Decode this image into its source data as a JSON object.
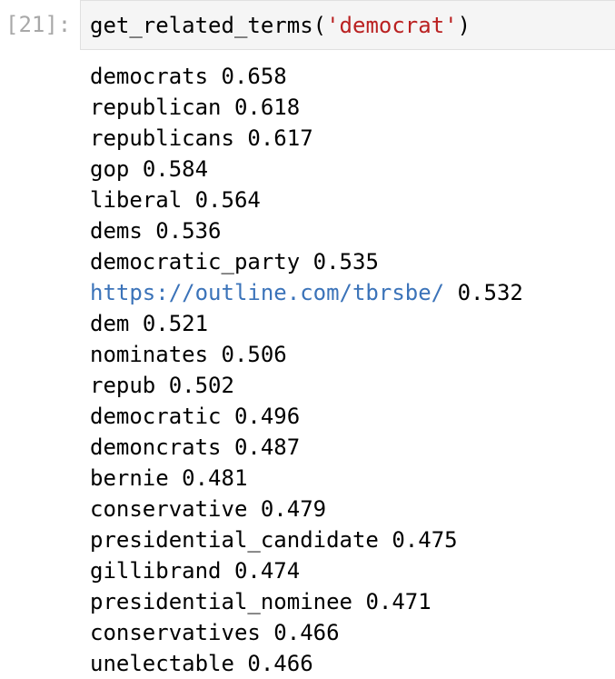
{
  "cell": {
    "prompt": "[21]:",
    "code": {
      "func_call": "get_related_terms(",
      "string_arg": "'democrat'",
      "close_paren": ")"
    }
  },
  "output": [
    {
      "term": "democrats",
      "score": "0.658",
      "is_link": false
    },
    {
      "term": "republican",
      "score": "0.618",
      "is_link": false
    },
    {
      "term": "republicans",
      "score": "0.617",
      "is_link": false
    },
    {
      "term": "gop",
      "score": "0.584",
      "is_link": false
    },
    {
      "term": "liberal",
      "score": "0.564",
      "is_link": false
    },
    {
      "term": "dems",
      "score": "0.536",
      "is_link": false
    },
    {
      "term": "democratic_party",
      "score": "0.535",
      "is_link": false
    },
    {
      "term": "https://outline.com/tbrsbe/",
      "score": "0.532",
      "is_link": true
    },
    {
      "term": "dem",
      "score": "0.521",
      "is_link": false
    },
    {
      "term": "nominates",
      "score": "0.506",
      "is_link": false
    },
    {
      "term": "repub",
      "score": "0.502",
      "is_link": false
    },
    {
      "term": "democratic",
      "score": "0.496",
      "is_link": false
    },
    {
      "term": "demoncrats",
      "score": "0.487",
      "is_link": false
    },
    {
      "term": "bernie",
      "score": "0.481",
      "is_link": false
    },
    {
      "term": "conservative",
      "score": "0.479",
      "is_link": false
    },
    {
      "term": "presidential_candidate",
      "score": "0.475",
      "is_link": false
    },
    {
      "term": "gillibrand",
      "score": "0.474",
      "is_link": false
    },
    {
      "term": "presidential_nominee",
      "score": "0.471",
      "is_link": false
    },
    {
      "term": "conservatives",
      "score": "0.466",
      "is_link": false
    },
    {
      "term": "unelectable",
      "score": "0.466",
      "is_link": false
    }
  ]
}
